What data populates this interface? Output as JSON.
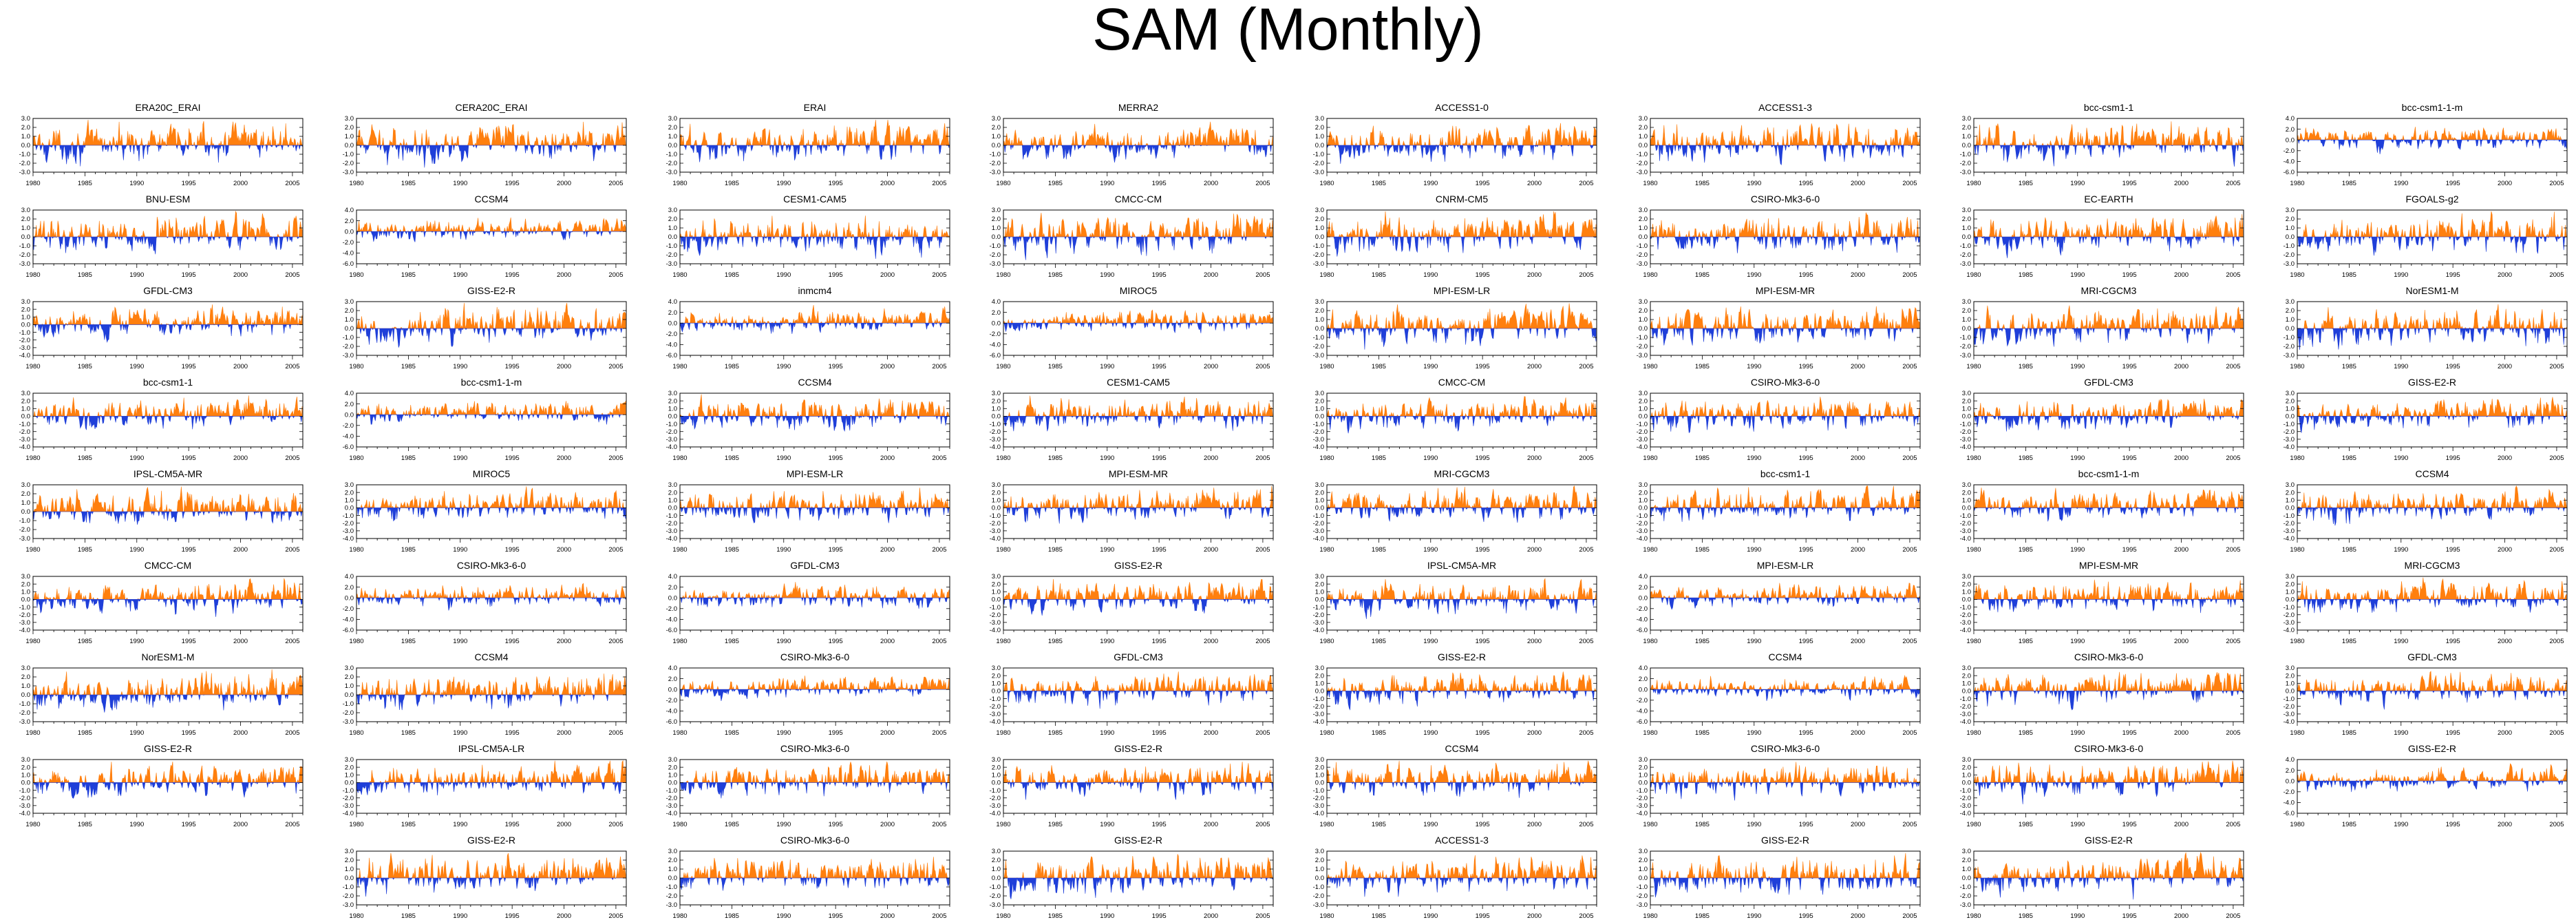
{
  "title": "SAM (Monthly)",
  "colors": {
    "positive": "#ff7f0e",
    "negative": "#1f3fd9",
    "axis": "#000000"
  },
  "chart_data": {
    "type": "area",
    "xlim": [
      1980,
      2006
    ],
    "xticks": [
      "1980",
      "1985",
      "1990",
      "1995",
      "2000",
      "2005"
    ],
    "panels": [
      {
        "title": "ERA20C_ERAI",
        "yticks": [
          "3.0",
          "2.0",
          "1.0",
          "0.0",
          "-1.0",
          "-2.0",
          "-3.0"
        ],
        "ylim": [
          -3,
          3
        ]
      },
      {
        "title": "CERA20C_ERAI",
        "yticks": [
          "3.0",
          "2.0",
          "1.0",
          "0.0",
          "-1.0",
          "-2.0",
          "-3.0"
        ],
        "ylim": [
          -3,
          3
        ]
      },
      {
        "title": "ERAI",
        "yticks": [
          "3.0",
          "2.0",
          "1.0",
          "0.0",
          "-1.0",
          "-2.0",
          "-3.0"
        ],
        "ylim": [
          -3,
          3
        ]
      },
      {
        "title": "MERRA2",
        "yticks": [
          "3.0",
          "2.0",
          "1.0",
          "0.0",
          "-1.0",
          "-2.0",
          "-3.0"
        ],
        "ylim": [
          -3,
          3
        ]
      },
      {
        "title": "ACCESS1-0",
        "yticks": [
          "3.0",
          "2.0",
          "1.0",
          "0.0",
          "-1.0",
          "-2.0",
          "-3.0"
        ],
        "ylim": [
          -3,
          3
        ]
      },
      {
        "title": "ACCESS1-3",
        "yticks": [
          "3.0",
          "2.0",
          "1.0",
          "0.0",
          "-1.0",
          "-2.0",
          "-3.0"
        ],
        "ylim": [
          -3,
          3
        ]
      },
      {
        "title": "bcc-csm1-1",
        "yticks": [
          "3.0",
          "2.0",
          "1.0",
          "0.0",
          "-1.0",
          "-2.0",
          "-3.0"
        ],
        "ylim": [
          -3,
          3
        ]
      },
      {
        "title": "bcc-csm1-1-m",
        "yticks": [
          "4.0",
          "2.0",
          "0.0",
          "-2.0",
          "-4.0",
          "-6.0"
        ],
        "ylim": [
          -6,
          4
        ]
      },
      {
        "title": "BNU-ESM",
        "yticks": [
          "3.0",
          "2.0",
          "1.0",
          "0.0",
          "-1.0",
          "-2.0",
          "-3.0"
        ],
        "ylim": [
          -3,
          3
        ]
      },
      {
        "title": "CCSM4",
        "yticks": [
          "4.0",
          "2.0",
          "0.0",
          "-2.0",
          "-4.0",
          "-6.0"
        ],
        "ylim": [
          -6,
          4
        ]
      },
      {
        "title": "CESM1-CAM5",
        "yticks": [
          "3.0",
          "2.0",
          "1.0",
          "0.0",
          "-1.0",
          "-2.0",
          "-3.0"
        ],
        "ylim": [
          -3,
          3
        ]
      },
      {
        "title": "CMCC-CM",
        "yticks": [
          "3.0",
          "2.0",
          "1.0",
          "0.0",
          "-1.0",
          "-2.0",
          "-3.0"
        ],
        "ylim": [
          -3,
          3
        ]
      },
      {
        "title": "CNRM-CM5",
        "yticks": [
          "3.0",
          "2.0",
          "1.0",
          "0.0",
          "-1.0",
          "-2.0",
          "-3.0"
        ],
        "ylim": [
          -3,
          3
        ]
      },
      {
        "title": "CSIRO-Mk3-6-0",
        "yticks": [
          "3.0",
          "2.0",
          "1.0",
          "0.0",
          "-1.0",
          "-2.0",
          "-3.0"
        ],
        "ylim": [
          -3,
          3
        ]
      },
      {
        "title": "EC-EARTH",
        "yticks": [
          "3.0",
          "2.0",
          "1.0",
          "0.0",
          "-1.0",
          "-2.0",
          "-3.0"
        ],
        "ylim": [
          -3,
          3
        ]
      },
      {
        "title": "FGOALS-g2",
        "yticks": [
          "3.0",
          "2.0",
          "1.0",
          "0.0",
          "-1.0",
          "-2.0",
          "-3.0"
        ],
        "ylim": [
          -3,
          3
        ]
      },
      {
        "title": "GFDL-CM3",
        "yticks": [
          "3.0",
          "2.0",
          "1.0",
          "0.0",
          "-1.0",
          "-2.0",
          "-3.0",
          "-4.0"
        ],
        "ylim": [
          -4,
          3
        ]
      },
      {
        "title": "GISS-E2-R",
        "yticks": [
          "3.0",
          "2.0",
          "1.0",
          "0.0",
          "-1.0",
          "-2.0",
          "-3.0"
        ],
        "ylim": [
          -3,
          3
        ]
      },
      {
        "title": "inmcm4",
        "yticks": [
          "4.0",
          "2.0",
          "0.0",
          "-2.0",
          "-4.0",
          "-6.0"
        ],
        "ylim": [
          -6,
          4
        ]
      },
      {
        "title": "MIROC5",
        "yticks": [
          "4.0",
          "2.0",
          "0.0",
          "-2.0",
          "-4.0",
          "-6.0"
        ],
        "ylim": [
          -6,
          4
        ]
      },
      {
        "title": "MPI-ESM-LR",
        "yticks": [
          "3.0",
          "2.0",
          "1.0",
          "0.0",
          "-1.0",
          "-2.0",
          "-3.0"
        ],
        "ylim": [
          -3,
          3
        ]
      },
      {
        "title": "MPI-ESM-MR",
        "yticks": [
          "3.0",
          "2.0",
          "1.0",
          "0.0",
          "-1.0",
          "-2.0",
          "-3.0"
        ],
        "ylim": [
          -3,
          3
        ]
      },
      {
        "title": "MRI-CGCM3",
        "yticks": [
          "3.0",
          "2.0",
          "1.0",
          "0.0",
          "-1.0",
          "-2.0",
          "-3.0"
        ],
        "ylim": [
          -3,
          3
        ]
      },
      {
        "title": "NorESM1-M",
        "yticks": [
          "3.0",
          "2.0",
          "1.0",
          "0.0",
          "-1.0",
          "-2.0",
          "-3.0"
        ],
        "ylim": [
          -3,
          3
        ]
      },
      {
        "title": "bcc-csm1-1",
        "yticks": [
          "3.0",
          "2.0",
          "1.0",
          "0.0",
          "-1.0",
          "-2.0",
          "-3.0",
          "-4.0"
        ],
        "ylim": [
          -4,
          3
        ]
      },
      {
        "title": "bcc-csm1-1-m",
        "yticks": [
          "4.0",
          "2.0",
          "0.0",
          "-2.0",
          "-4.0",
          "-6.0"
        ],
        "ylim": [
          -6,
          4
        ]
      },
      {
        "title": "CCSM4",
        "yticks": [
          "3.0",
          "2.0",
          "1.0",
          "0.0",
          "-1.0",
          "-2.0",
          "-3.0",
          "-4.0"
        ],
        "ylim": [
          -4,
          3
        ]
      },
      {
        "title": "CESM1-CAM5",
        "yticks": [
          "3.0",
          "2.0",
          "1.0",
          "0.0",
          "-1.0",
          "-2.0",
          "-3.0",
          "-4.0"
        ],
        "ylim": [
          -4,
          3
        ]
      },
      {
        "title": "CMCC-CM",
        "yticks": [
          "3.0",
          "2.0",
          "1.0",
          "0.0",
          "-1.0",
          "-2.0",
          "-3.0",
          "-4.0"
        ],
        "ylim": [
          -4,
          3
        ]
      },
      {
        "title": "CSIRO-Mk3-6-0",
        "yticks": [
          "3.0",
          "2.0",
          "1.0",
          "0.0",
          "-1.0",
          "-2.0",
          "-3.0",
          "-4.0"
        ],
        "ylim": [
          -4,
          3
        ]
      },
      {
        "title": "GFDL-CM3",
        "yticks": [
          "3.0",
          "2.0",
          "1.0",
          "0.0",
          "-1.0",
          "-2.0",
          "-3.0",
          "-4.0"
        ],
        "ylim": [
          -4,
          3
        ]
      },
      {
        "title": "GISS-E2-R",
        "yticks": [
          "3.0",
          "2.0",
          "1.0",
          "0.0",
          "-1.0",
          "-2.0",
          "-3.0",
          "-4.0"
        ],
        "ylim": [
          -4,
          3
        ]
      },
      {
        "title": "IPSL-CM5A-MR",
        "yticks": [
          "3.0",
          "2.0",
          "1.0",
          "0.0",
          "-1.0",
          "-2.0",
          "-3.0"
        ],
        "ylim": [
          -3,
          3
        ]
      },
      {
        "title": "MIROC5",
        "yticks": [
          "3.0",
          "2.0",
          "1.0",
          "0.0",
          "-1.0",
          "-2.0",
          "-3.0",
          "-4.0"
        ],
        "ylim": [
          -4,
          3
        ]
      },
      {
        "title": "MPI-ESM-LR",
        "yticks": [
          "3.0",
          "2.0",
          "1.0",
          "0.0",
          "-1.0",
          "-2.0",
          "-3.0",
          "-4.0"
        ],
        "ylim": [
          -4,
          3
        ]
      },
      {
        "title": "MPI-ESM-MR",
        "yticks": [
          "3.0",
          "2.0",
          "1.0",
          "0.0",
          "-1.0",
          "-2.0",
          "-3.0",
          "-4.0"
        ],
        "ylim": [
          -4,
          3
        ]
      },
      {
        "title": "MRI-CGCM3",
        "yticks": [
          "3.0",
          "2.0",
          "1.0",
          "0.0",
          "-1.0",
          "-2.0",
          "-3.0",
          "-4.0"
        ],
        "ylim": [
          -4,
          3
        ]
      },
      {
        "title": "bcc-csm1-1",
        "yticks": [
          "3.0",
          "2.0",
          "1.0",
          "0.0",
          "-1.0",
          "-2.0",
          "-3.0",
          "-4.0"
        ],
        "ylim": [
          -4,
          3
        ]
      },
      {
        "title": "bcc-csm1-1-m",
        "yticks": [
          "3.0",
          "2.0",
          "1.0",
          "0.0",
          "-1.0",
          "-2.0",
          "-3.0",
          "-4.0"
        ],
        "ylim": [
          -4,
          3
        ]
      },
      {
        "title": "CCSM4",
        "yticks": [
          "3.0",
          "2.0",
          "1.0",
          "0.0",
          "-1.0",
          "-2.0",
          "-3.0",
          "-4.0"
        ],
        "ylim": [
          -4,
          3
        ]
      },
      {
        "title": "CMCC-CM",
        "yticks": [
          "3.0",
          "2.0",
          "1.0",
          "0.0",
          "-1.0",
          "-2.0",
          "-3.0",
          "-4.0"
        ],
        "ylim": [
          -4,
          3
        ]
      },
      {
        "title": "CSIRO-Mk3-6-0",
        "yticks": [
          "4.0",
          "2.0",
          "0.0",
          "-2.0",
          "-4.0",
          "-6.0"
        ],
        "ylim": [
          -6,
          4
        ]
      },
      {
        "title": "GFDL-CM3",
        "yticks": [
          "4.0",
          "2.0",
          "0.0",
          "-2.0",
          "-4.0",
          "-6.0"
        ],
        "ylim": [
          -6,
          4
        ]
      },
      {
        "title": "GISS-E2-R",
        "yticks": [
          "3.0",
          "2.0",
          "1.0",
          "0.0",
          "-1.0",
          "-2.0",
          "-3.0",
          "-4.0"
        ],
        "ylim": [
          -4,
          3
        ]
      },
      {
        "title": "IPSL-CM5A-MR",
        "yticks": [
          "3.0",
          "2.0",
          "1.0",
          "0.0",
          "-1.0",
          "-2.0",
          "-3.0",
          "-4.0"
        ],
        "ylim": [
          -4,
          3
        ]
      },
      {
        "title": "MPI-ESM-LR",
        "yticks": [
          "4.0",
          "2.0",
          "0.0",
          "-2.0",
          "-4.0",
          "-6.0"
        ],
        "ylim": [
          -6,
          4
        ]
      },
      {
        "title": "MPI-ESM-MR",
        "yticks": [
          "3.0",
          "2.0",
          "1.0",
          "0.0",
          "-1.0",
          "-2.0",
          "-3.0",
          "-4.0"
        ],
        "ylim": [
          -4,
          3
        ]
      },
      {
        "title": "MRI-CGCM3",
        "yticks": [
          "3.0",
          "2.0",
          "1.0",
          "0.0",
          "-1.0",
          "-2.0",
          "-3.0",
          "-4.0"
        ],
        "ylim": [
          -4,
          3
        ]
      },
      {
        "title": "NorESM1-M",
        "yticks": [
          "3.0",
          "2.0",
          "1.0",
          "0.0",
          "-1.0",
          "-2.0",
          "-3.0"
        ],
        "ylim": [
          -3,
          3
        ]
      },
      {
        "title": "CCSM4",
        "yticks": [
          "3.0",
          "2.0",
          "1.0",
          "0.0",
          "-1.0",
          "-2.0",
          "-3.0"
        ],
        "ylim": [
          -3,
          3
        ]
      },
      {
        "title": "CSIRO-Mk3-6-0",
        "yticks": [
          "4.0",
          "2.0",
          "0.0",
          "-2.0",
          "-4.0",
          "-6.0"
        ],
        "ylim": [
          -6,
          4
        ]
      },
      {
        "title": "GFDL-CM3",
        "yticks": [
          "3.0",
          "2.0",
          "1.0",
          "0.0",
          "-1.0",
          "-2.0",
          "-3.0",
          "-4.0"
        ],
        "ylim": [
          -4,
          3
        ]
      },
      {
        "title": "GISS-E2-R",
        "yticks": [
          "3.0",
          "2.0",
          "1.0",
          "0.0",
          "-1.0",
          "-2.0",
          "-3.0",
          "-4.0"
        ],
        "ylim": [
          -4,
          3
        ]
      },
      {
        "title": "CCSM4",
        "yticks": [
          "4.0",
          "2.0",
          "0.0",
          "-2.0",
          "-4.0",
          "-6.0"
        ],
        "ylim": [
          -6,
          4
        ]
      },
      {
        "title": "CSIRO-Mk3-6-0",
        "yticks": [
          "3.0",
          "2.0",
          "1.0",
          "0.0",
          "-1.0",
          "-2.0",
          "-3.0",
          "-4.0"
        ],
        "ylim": [
          -4,
          3
        ]
      },
      {
        "title": "GFDL-CM3",
        "yticks": [
          "3.0",
          "2.0",
          "1.0",
          "0.0",
          "-1.0",
          "-2.0",
          "-3.0",
          "-4.0"
        ],
        "ylim": [
          -4,
          3
        ]
      },
      {
        "title": "GISS-E2-R",
        "yticks": [
          "3.0",
          "2.0",
          "1.0",
          "0.0",
          "-1.0",
          "-2.0",
          "-3.0",
          "-4.0"
        ],
        "ylim": [
          -4,
          3
        ]
      },
      {
        "title": "IPSL-CM5A-LR",
        "yticks": [
          "3.0",
          "2.0",
          "1.0",
          "0.0",
          "-1.0",
          "-2.0",
          "-3.0",
          "-4.0"
        ],
        "ylim": [
          -4,
          3
        ]
      },
      {
        "title": "CSIRO-Mk3-6-0",
        "yticks": [
          "3.0",
          "2.0",
          "1.0",
          "0.0",
          "-1.0",
          "-2.0",
          "-3.0",
          "-4.0"
        ],
        "ylim": [
          -4,
          3
        ]
      },
      {
        "title": "GISS-E2-R",
        "yticks": [
          "3.0",
          "2.0",
          "1.0",
          "0.0",
          "-1.0",
          "-2.0",
          "-3.0",
          "-4.0"
        ],
        "ylim": [
          -4,
          3
        ]
      },
      {
        "title": "CCSM4",
        "yticks": [
          "3.0",
          "2.0",
          "1.0",
          "0.0",
          "-1.0",
          "-2.0",
          "-3.0",
          "-4.0"
        ],
        "ylim": [
          -4,
          3
        ]
      },
      {
        "title": "CSIRO-Mk3-6-0",
        "yticks": [
          "3.0",
          "2.0",
          "1.0",
          "0.0",
          "-1.0",
          "-2.0",
          "-3.0",
          "-4.0"
        ],
        "ylim": [
          -4,
          3
        ]
      },
      {
        "title": "CSIRO-Mk3-6-0",
        "yticks": [
          "3.0",
          "2.0",
          "1.0",
          "0.0",
          "-1.0",
          "-2.0",
          "-3.0",
          "-4.0"
        ],
        "ylim": [
          -4,
          3
        ]
      },
      {
        "title": "GISS-E2-R",
        "yticks": [
          "4.0",
          "2.0",
          "0.0",
          "-2.0",
          "-4.0",
          "-6.0"
        ],
        "ylim": [
          -6,
          4
        ]
      },
      {
        "title": "",
        "yticks": [],
        "ylim": [
          -3,
          3
        ],
        "empty": true
      },
      {
        "title": "GISS-E2-R",
        "yticks": [
          "3.0",
          "2.0",
          "1.0",
          "0.0",
          "-1.0",
          "-2.0",
          "-3.0"
        ],
        "ylim": [
          -3,
          3
        ]
      },
      {
        "title": "CSIRO-Mk3-6-0",
        "yticks": [
          "3.0",
          "2.0",
          "1.0",
          "0.0",
          "-1.0",
          "-2.0",
          "-3.0"
        ],
        "ylim": [
          -3,
          3
        ]
      },
      {
        "title": "GISS-E2-R",
        "yticks": [
          "3.0",
          "2.0",
          "1.0",
          "0.0",
          "-1.0",
          "-2.0",
          "-3.0"
        ],
        "ylim": [
          -3,
          3
        ]
      },
      {
        "title": "ACCESS1-3",
        "yticks": [
          "3.0",
          "2.0",
          "1.0",
          "0.0",
          "-1.0",
          "-2.0",
          "-3.0"
        ],
        "ylim": [
          -3,
          3
        ]
      },
      {
        "title": "GISS-E2-R",
        "yticks": [
          "3.0",
          "2.0",
          "1.0",
          "0.0",
          "-1.0",
          "-2.0",
          "-3.0"
        ],
        "ylim": [
          -3,
          3
        ]
      },
      {
        "title": "GISS-E2-R",
        "yticks": [
          "3.0",
          "2.0",
          "1.0",
          "0.0",
          "-1.0",
          "-2.0",
          "-3.0"
        ],
        "ylim": [
          -3,
          3
        ]
      }
    ]
  }
}
